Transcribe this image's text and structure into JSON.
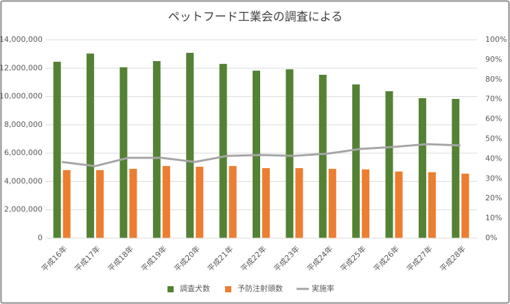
{
  "chart_data": {
    "type": "bar",
    "title": "ペットフード工業会の調査による",
    "categories": [
      "平成16年",
      "平成17年",
      "平成18年",
      "平成19年",
      "平成20年",
      "平成21年",
      "平成22年",
      "平成23年",
      "平成24年",
      "平成25年",
      "平成26年",
      "平成27年",
      "平成28年"
    ],
    "series": [
      {
        "name": "調査犬数",
        "color": "#548235",
        "type": "bar",
        "values": [
          12450000,
          13030000,
          12060000,
          12500000,
          13080000,
          12300000,
          11820000,
          11920000,
          11530000,
          10850000,
          10370000,
          9880000,
          9830000
        ]
      },
      {
        "name": "予防注射頭数",
        "color": "#ed7d31",
        "type": "bar",
        "values": [
          4800000,
          4800000,
          4890000,
          5090000,
          5040000,
          5090000,
          4940000,
          4940000,
          4890000,
          4850000,
          4700000,
          4650000,
          4550000
        ]
      },
      {
        "name": "実施率",
        "color": "#a5a5a5",
        "type": "line",
        "axis": "y2",
        "values": [
          38.4,
          36.3,
          40.5,
          40.5,
          38.4,
          41.5,
          41.9,
          41.5,
          42.6,
          45.0,
          46.0,
          47.4,
          46.7
        ]
      }
    ],
    "ylim": [
      0,
      14000000
    ],
    "yticks": [
      0,
      {
        "value": 2000000,
        "label": "2,000,000"
      },
      {
        "value": 4000000,
        "label": "4,000,000"
      },
      {
        "value": 6000000,
        "label": "6,000,000"
      },
      {
        "value": 8000000,
        "label": "8,000,000"
      },
      {
        "value": 10000000,
        "label": "10,000,000"
      },
      {
        "value": 12000000,
        "label": "12,000,000"
      },
      {
        "value": 14000000,
        "label": "14,000,000"
      }
    ],
    "y2lim": [
      0,
      100
    ],
    "y2ticks": [
      {
        "value": 0,
        "label": "0%"
      },
      {
        "value": 10,
        "label": "10%"
      },
      {
        "value": 20,
        "label": "20%"
      },
      {
        "value": 30,
        "label": "30%"
      },
      {
        "value": 40,
        "label": "40%"
      },
      {
        "value": 50,
        "label": "50%"
      },
      {
        "value": 60,
        "label": "60%"
      },
      {
        "value": 70,
        "label": "70%"
      },
      {
        "value": 80,
        "label": "80%"
      },
      {
        "value": 90,
        "label": "90%"
      },
      {
        "value": 100,
        "label": "100%"
      }
    ],
    "grid": true,
    "legend": "bottom"
  }
}
